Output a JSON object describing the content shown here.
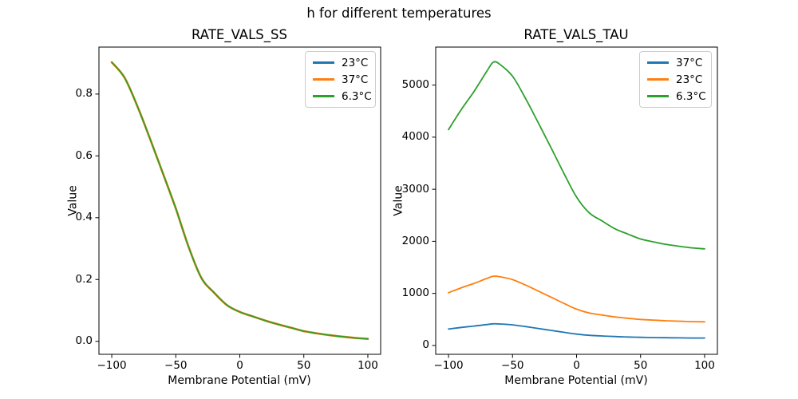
{
  "figure": {
    "title": "h for different temperatures",
    "background": "#ffffff"
  },
  "palette": {
    "blue": "#1f77b4",
    "orange": "#ff7f0e",
    "green": "#2ca02c",
    "axis": "#000000",
    "legend_border": "#cccccc"
  },
  "chart_data": [
    {
      "type": "line",
      "title": "RATE_VALS_SS",
      "xlabel": "Membrane Potential (mV)",
      "ylabel": "Value",
      "xlim": [
        -110,
        110
      ],
      "ylim": [
        -0.042,
        0.952
      ],
      "grid": false,
      "legend_position": "upper right",
      "xticks": [
        -100,
        -50,
        0,
        50,
        100
      ],
      "xtick_labels": [
        "−100",
        "−50",
        "0",
        "50",
        "100"
      ],
      "yticks": [
        0.0,
        0.2,
        0.4,
        0.6,
        0.8
      ],
      "ytick_labels": [
        "0.0",
        "0.2",
        "0.4",
        "0.6",
        "0.8"
      ],
      "x": [
        -100,
        -90,
        -80,
        -70,
        -60,
        -50,
        -40,
        -30,
        -20,
        -10,
        0,
        10,
        20,
        30,
        40,
        50,
        60,
        70,
        80,
        90,
        100
      ],
      "series": [
        {
          "name": "23°C",
          "color": "#1f77b4",
          "values": [
            0.903,
            0.853,
            0.761,
            0.654,
            0.543,
            0.43,
            0.306,
            0.205,
            0.157,
            0.117,
            0.095,
            0.081,
            0.067,
            0.055,
            0.044,
            0.033,
            0.026,
            0.02,
            0.015,
            0.011,
            0.008
          ]
        },
        {
          "name": "37°C",
          "color": "#ff7f0e",
          "values": [
            0.903,
            0.853,
            0.761,
            0.654,
            0.543,
            0.43,
            0.306,
            0.205,
            0.157,
            0.117,
            0.095,
            0.081,
            0.067,
            0.055,
            0.044,
            0.033,
            0.026,
            0.02,
            0.015,
            0.011,
            0.008
          ]
        },
        {
          "name": "6.3°C",
          "color": "#2ca02c",
          "values": [
            0.903,
            0.853,
            0.761,
            0.654,
            0.543,
            0.43,
            0.306,
            0.205,
            0.157,
            0.117,
            0.095,
            0.081,
            0.067,
            0.055,
            0.044,
            0.033,
            0.026,
            0.02,
            0.015,
            0.011,
            0.008
          ]
        }
      ]
    },
    {
      "type": "line",
      "title": "RATE_VALS_TAU",
      "xlabel": "Membrane Potential (mV)",
      "ylabel": "Value",
      "xlim": [
        -110,
        110
      ],
      "ylim": [
        -170,
        5730
      ],
      "grid": false,
      "legend_position": "upper right",
      "xticks": [
        -100,
        -50,
        0,
        50,
        100
      ],
      "xtick_labels": [
        "−100",
        "−50",
        "0",
        "50",
        "100"
      ],
      "yticks": [
        0,
        1000,
        2000,
        3000,
        4000,
        5000
      ],
      "ytick_labels": [
        "0",
        "1000",
        "2000",
        "3000",
        "4000",
        "5000"
      ],
      "x": [
        -100,
        -90,
        -80,
        -70,
        -65,
        -60,
        -50,
        -40,
        -30,
        -20,
        -10,
        0,
        10,
        20,
        30,
        40,
        50,
        60,
        70,
        80,
        90,
        100
      ],
      "series": [
        {
          "name": "37°C",
          "color": "#1f77b4",
          "values": [
            316,
            346,
            373,
            402,
            415,
            412,
            395,
            363,
            327,
            290,
            253,
            218,
            194,
            182,
            171,
            163,
            156,
            152,
            148,
            145,
            143,
            142
          ]
        },
        {
          "name": "23°C",
          "color": "#ff7f0e",
          "values": [
            1013,
            1108,
            1193,
            1288,
            1330,
            1320,
            1264,
            1161,
            1046,
            929,
            809,
            697,
            622,
            584,
            548,
            523,
            500,
            487,
            474,
            466,
            458,
            454
          ]
        },
        {
          "name": "6.3°C",
          "color": "#2ca02c",
          "values": [
            4145,
            4530,
            4880,
            5270,
            5440,
            5400,
            5170,
            4750,
            4280,
            3800,
            3310,
            2850,
            2545,
            2390,
            2240,
            2140,
            2045,
            1990,
            1940,
            1905,
            1875,
            1855
          ]
        }
      ]
    }
  ]
}
